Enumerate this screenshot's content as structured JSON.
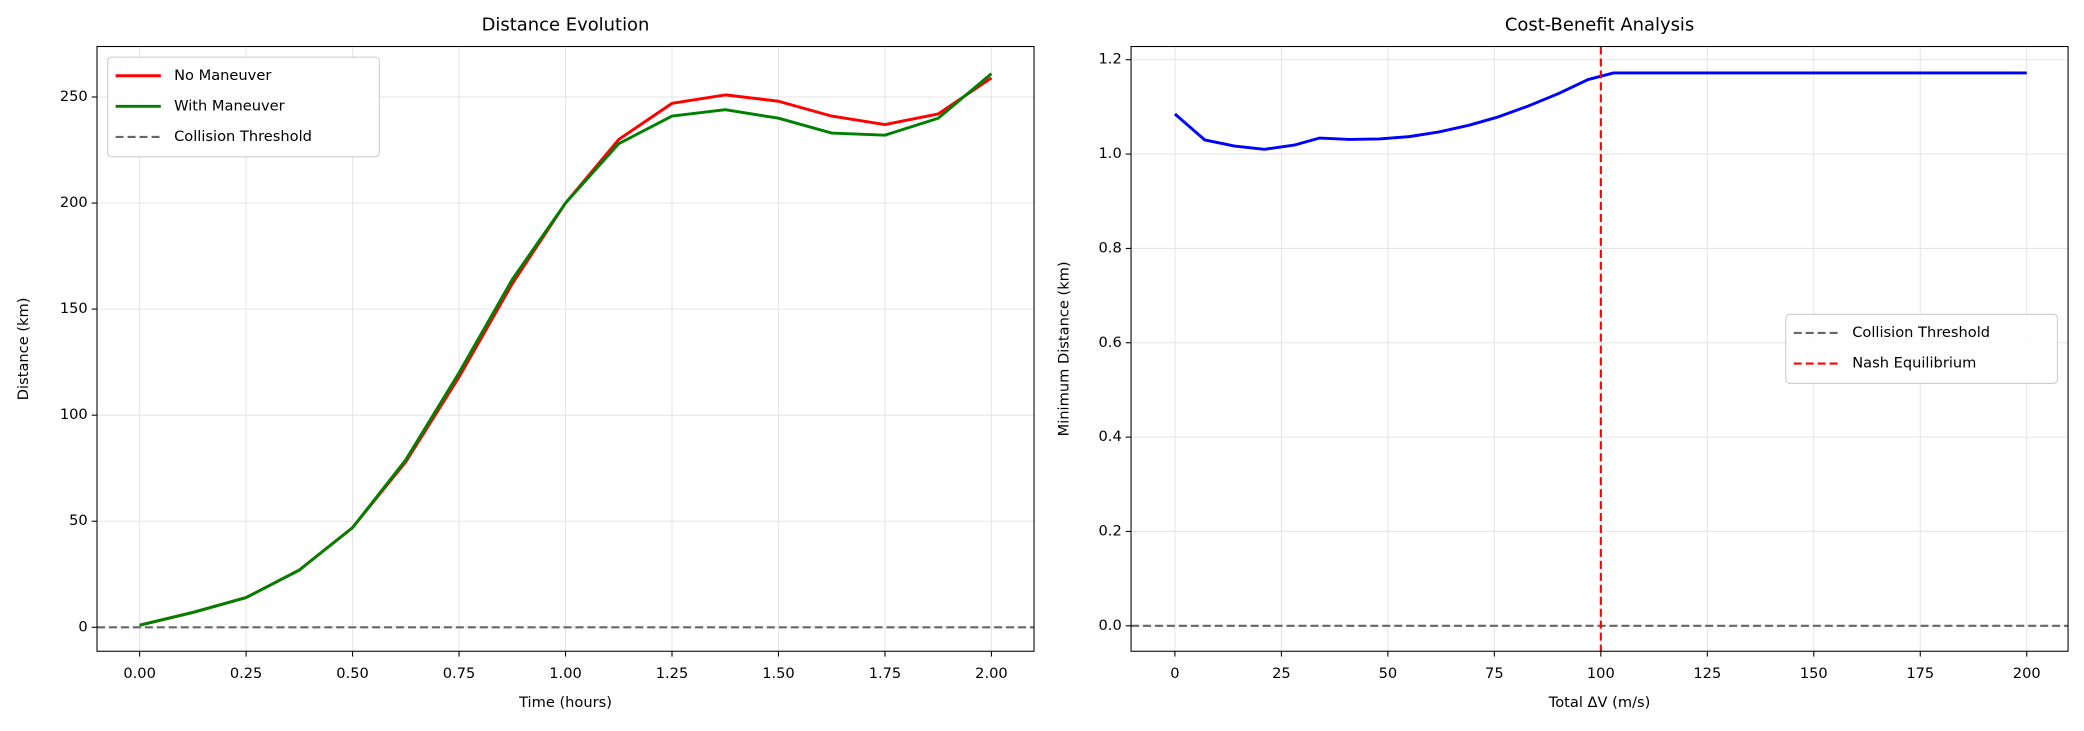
{
  "chart_data": [
    {
      "type": "line",
      "title": "Distance Evolution",
      "xlabel": "Time (hours)",
      "ylabel": "Distance (km)",
      "x": [
        0,
        0.125,
        0.25,
        0.375,
        0.5,
        0.625,
        0.75,
        0.875,
        1.0,
        1.125,
        1.25,
        1.375,
        1.5,
        1.625,
        1.75,
        1.875,
        2.0
      ],
      "series": [
        {
          "name": "No Maneuver",
          "color": "#ff0000",
          "values": [
            1,
            7,
            14,
            27,
            47,
            78,
            118,
            162,
            200,
            230,
            247,
            251,
            248,
            241,
            237,
            242,
            259
          ]
        },
        {
          "name": "With Maneuver",
          "color": "#008000",
          "values": [
            1,
            7,
            14,
            27,
            47,
            79,
            120,
            164,
            200,
            228,
            241,
            244,
            240,
            233,
            232,
            240,
            261
          ]
        }
      ],
      "hlines": [
        {
          "name": "Collision Threshold",
          "value": 0,
          "color": "#666666"
        }
      ],
      "xlim": [
        -0.1,
        2.1
      ],
      "ylim": [
        -11.3,
        273.8
      ],
      "xticks": [
        {
          "value": 0,
          "label": "0.00"
        },
        {
          "value": 0.25,
          "label": "0.25"
        },
        {
          "value": 0.5,
          "label": "0.50"
        },
        {
          "value": 0.75,
          "label": "0.75"
        },
        {
          "value": 1,
          "label": "1.00"
        },
        {
          "value": 1.25,
          "label": "1.25"
        },
        {
          "value": 1.5,
          "label": "1.50"
        },
        {
          "value": 1.75,
          "label": "1.75"
        },
        {
          "value": 2,
          "label": "2.00"
        }
      ],
      "yticks": [
        0,
        50,
        100,
        150,
        200,
        250
      ],
      "grid": true,
      "legend": "upper left"
    },
    {
      "type": "line",
      "title": "Cost-Benefit Analysis",
      "xlabel": "Total ΔV (m/s)",
      "ylabel": "Minimum Distance (km)",
      "x": [
        0,
        7,
        14,
        21,
        28,
        34,
        41,
        48,
        55,
        62,
        69,
        76,
        83,
        90,
        97,
        103,
        200
      ],
      "series": [
        {
          "color": "#0000ff",
          "values": [
            1.085,
            1.03,
            1.017,
            1.01,
            1.019,
            1.034,
            1.031,
            1.032,
            1.037,
            1.047,
            1.061,
            1.079,
            1.102,
            1.128,
            1.158,
            1.172,
            1.172
          ]
        }
      ],
      "hlines": [
        {
          "name": "Collision Threshold",
          "value": 0,
          "color": "#666666"
        }
      ],
      "vlines": [
        {
          "name": "Nash Equilibrium",
          "value": 100,
          "color": "#ff0000"
        }
      ],
      "xlim": [
        -10.3,
        209.7
      ],
      "ylim": [
        -0.054,
        1.228
      ],
      "xticks": [
        0,
        25,
        50,
        75,
        100,
        125,
        150,
        175,
        200
      ],
      "yticks": [
        {
          "value": 0,
          "label": "0.0"
        },
        {
          "value": 0.2,
          "label": "0.2"
        },
        {
          "value": 0.4,
          "label": "0.4"
        },
        {
          "value": 0.6,
          "label": "0.6"
        },
        {
          "value": 0.8,
          "label": "0.8"
        },
        {
          "value": 1.0,
          "label": "1.0"
        },
        {
          "value": 1.2,
          "label": "1.2"
        }
      ],
      "grid": true,
      "legend": "center right"
    }
  ]
}
